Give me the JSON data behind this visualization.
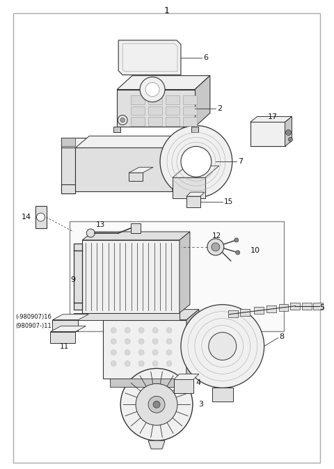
{
  "fig_width": 4.8,
  "fig_height": 6.74,
  "dpi": 100,
  "bg_color": "#ffffff",
  "lc": "#333333",
  "tc": "#111111",
  "fc_light": "#f0f0f0",
  "fc_mid": "#e0e0e0",
  "fc_dark": "#c8c8c8",
  "border_color": "#aaaaaa"
}
